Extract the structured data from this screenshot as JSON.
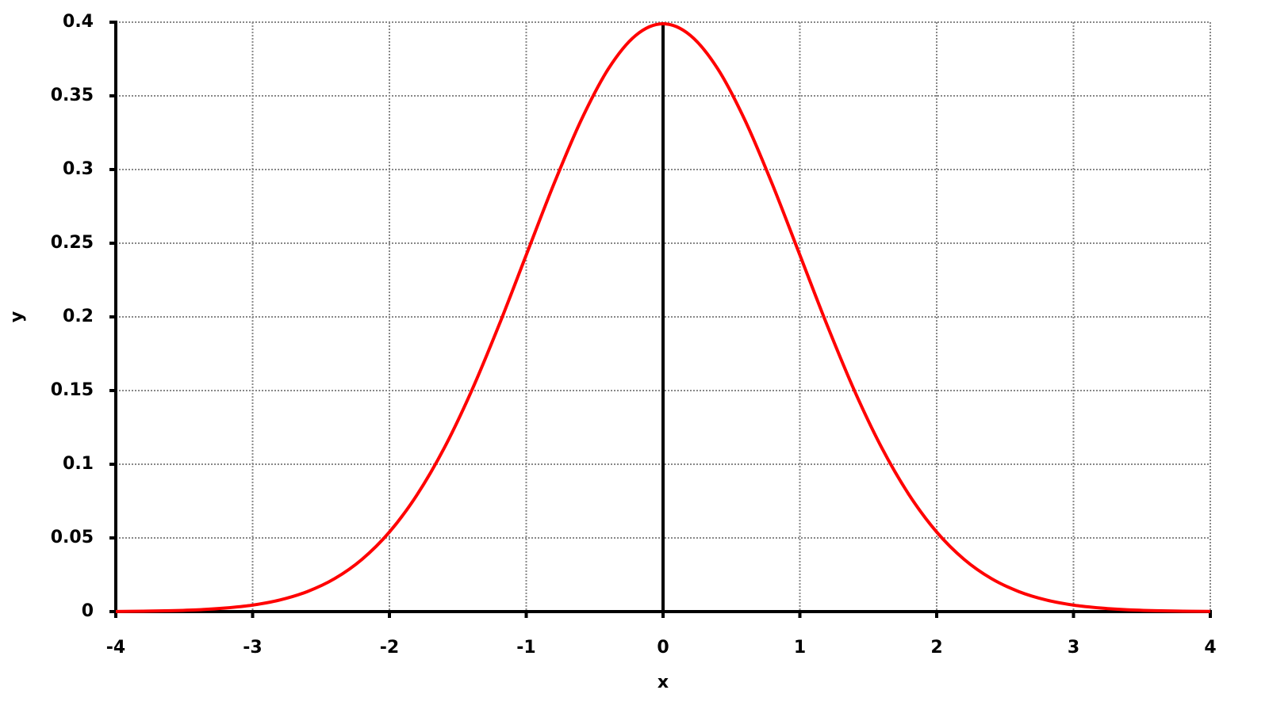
{
  "chart_data": {
    "type": "line",
    "x_label": "x",
    "y_label": "y",
    "x": [
      -4,
      -3.8,
      -3.6,
      -3.4,
      -3.2,
      -3,
      -2.8,
      -2.6,
      -2.4,
      -2.2,
      -2,
      -1.8,
      -1.6,
      -1.4,
      -1.2,
      -1,
      -0.8,
      -0.6,
      -0.4,
      -0.2,
      0,
      0.2,
      0.4,
      0.6,
      0.8,
      1,
      1.2,
      1.4,
      1.6,
      1.8,
      2,
      2.2,
      2.4,
      2.6,
      2.8,
      3,
      3.2,
      3.4,
      3.6,
      3.8,
      4
    ],
    "series": [
      {
        "color": "#ff0000",
        "values": [
          0.0001,
          0.0003,
          0.0006,
          0.0012,
          0.0024,
          0.0044,
          0.0079,
          0.0136,
          0.0224,
          0.0355,
          0.054,
          0.079,
          0.1109,
          0.1497,
          0.1942,
          0.242,
          0.2897,
          0.3332,
          0.3683,
          0.391,
          0.3989,
          0.391,
          0.3683,
          0.3332,
          0.2897,
          0.242,
          0.1942,
          0.1497,
          0.1109,
          0.079,
          0.054,
          0.0355,
          0.0224,
          0.0136,
          0.0079,
          0.0044,
          0.0024,
          0.0012,
          0.0006,
          0.0003,
          0.0001
        ]
      }
    ],
    "xlim": [
      -4,
      4
    ],
    "xticks": [
      -4,
      -3,
      -2,
      -1,
      0,
      1,
      2,
      3,
      4
    ],
    "ylim": [
      0,
      0.4
    ],
    "yticks": [
      0,
      0.05,
      0.1,
      0.15,
      0.2,
      0.25,
      0.3,
      0.35,
      0.4
    ],
    "grid": true
  }
}
